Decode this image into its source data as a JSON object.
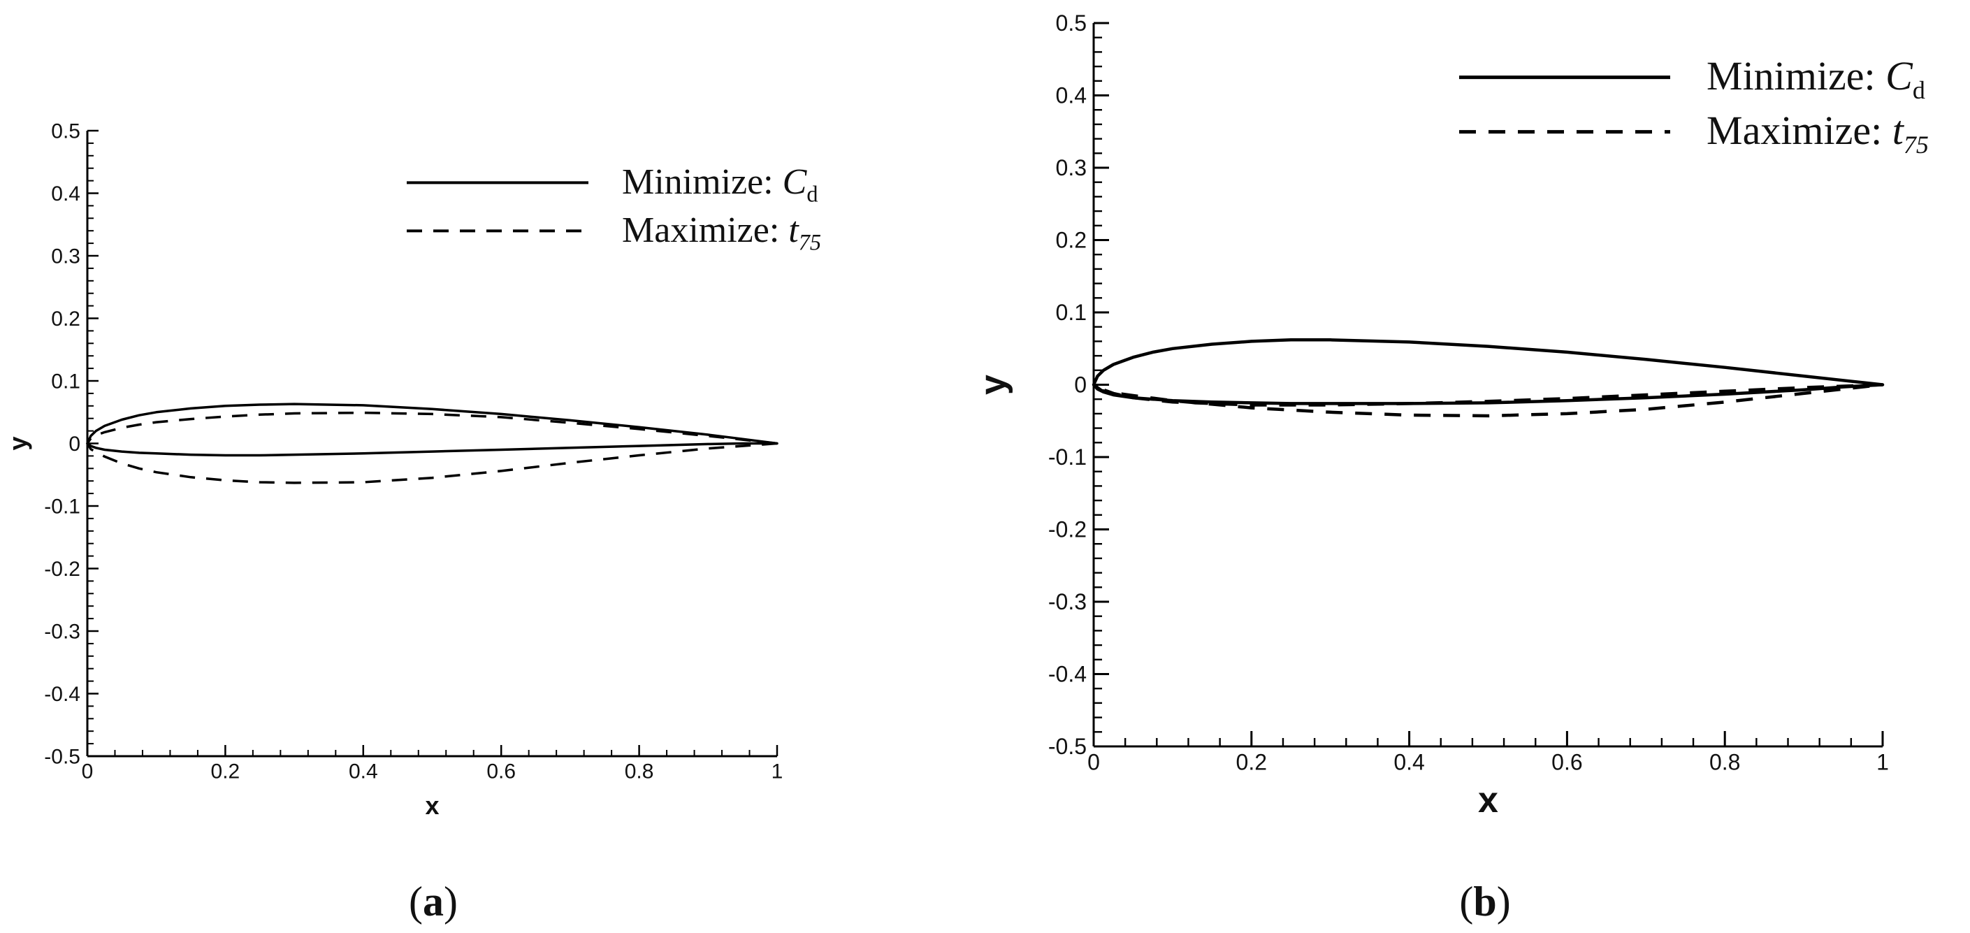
{
  "chart_data": [
    {
      "type": "line",
      "caption": "(a)",
      "caption_paren_open": "(",
      "caption_letter": "a",
      "caption_paren_close": ")",
      "xlabel": "x",
      "ylabel": "y",
      "xlim": [
        0,
        1
      ],
      "ylim": [
        -0.5,
        0.5
      ],
      "xticks": [
        0,
        0.2,
        0.4,
        0.6,
        0.8,
        1
      ],
      "xtick_labels": [
        "0",
        "0.2",
        "0.4",
        "0.6",
        "0.8",
        "1"
      ],
      "yticks": [
        -0.5,
        -0.4,
        -0.3,
        -0.2,
        -0.1,
        0,
        0.1,
        0.2,
        0.3,
        0.4,
        0.5
      ],
      "ytick_labels": [
        "-0.5",
        "-0.4",
        "-0.3",
        "-0.2",
        "-0.1",
        "0",
        "0.1",
        "0.2",
        "0.3",
        "0.4",
        "0.5"
      ],
      "grid": false,
      "legend_position": "top-right",
      "series": [
        {
          "legend_prefix": "Minimize: ",
          "legend_symbol": "C",
          "legend_sub": "d",
          "style": "solid",
          "color": "#000000",
          "x": [
            1.0,
            0.95,
            0.9,
            0.8,
            0.7,
            0.6,
            0.5,
            0.4,
            0.3,
            0.25,
            0.2,
            0.15,
            0.1,
            0.075,
            0.05,
            0.025,
            0.0125,
            0.005,
            0.0,
            0.005,
            0.0125,
            0.025,
            0.05,
            0.075,
            0.1,
            0.15,
            0.2,
            0.25,
            0.3,
            0.4,
            0.5,
            0.6,
            0.7,
            0.8,
            0.9,
            0.95,
            1.0
          ],
          "y": [
            0.0,
            0.007,
            0.014,
            0.026,
            0.037,
            0.047,
            0.055,
            0.061,
            0.063,
            0.062,
            0.06,
            0.056,
            0.05,
            0.045,
            0.038,
            0.028,
            0.02,
            0.012,
            0.0,
            -0.004,
            -0.007,
            -0.01,
            -0.013,
            -0.015,
            -0.016,
            -0.018,
            -0.019,
            -0.019,
            -0.018,
            -0.016,
            -0.013,
            -0.01,
            -0.007,
            -0.004,
            -0.001,
            0.0,
            0.0
          ]
        },
        {
          "legend_prefix": "Maximize: ",
          "legend_symbol": "t",
          "legend_sub": "75",
          "style": "dashed",
          "color": "#000000",
          "x": [
            1.0,
            0.95,
            0.9,
            0.8,
            0.7,
            0.6,
            0.5,
            0.4,
            0.3,
            0.25,
            0.2,
            0.15,
            0.1,
            0.075,
            0.05,
            0.025,
            0.0125,
            0.005,
            0.0,
            0.005,
            0.0125,
            0.025,
            0.05,
            0.075,
            0.1,
            0.15,
            0.2,
            0.25,
            0.3,
            0.4,
            0.5,
            0.6,
            0.7,
            0.8,
            0.9,
            0.95,
            1.0
          ],
          "y": [
            0.0,
            0.006,
            0.012,
            0.023,
            0.033,
            0.042,
            0.047,
            0.049,
            0.048,
            0.046,
            0.043,
            0.039,
            0.034,
            0.03,
            0.025,
            0.018,
            0.013,
            0.008,
            0.0,
            -0.009,
            -0.014,
            -0.021,
            -0.032,
            -0.04,
            -0.046,
            -0.054,
            -0.059,
            -0.062,
            -0.063,
            -0.062,
            -0.055,
            -0.044,
            -0.031,
            -0.019,
            -0.008,
            -0.004,
            0.0
          ]
        }
      ]
    },
    {
      "type": "line",
      "caption": "(b)",
      "caption_paren_open": "(",
      "caption_letter": "b",
      "caption_paren_close": ")",
      "xlabel": "x",
      "ylabel": "y",
      "xlim": [
        0,
        1
      ],
      "ylim": [
        -0.5,
        0.5
      ],
      "xticks": [
        0,
        0.2,
        0.4,
        0.6,
        0.8,
        1
      ],
      "xtick_labels": [
        "0",
        "0.2",
        "0.4",
        "0.6",
        "0.8",
        "1"
      ],
      "yticks": [
        -0.5,
        -0.4,
        -0.3,
        -0.2,
        -0.1,
        0,
        0.1,
        0.2,
        0.3,
        0.4,
        0.5
      ],
      "ytick_labels": [
        "-0.5",
        "-0.4",
        "-0.3",
        "-0.2",
        "-0.1",
        "0",
        "0.1",
        "0.2",
        "0.3",
        "0.4",
        "0.5"
      ],
      "grid": false,
      "legend_position": "top-right",
      "series": [
        {
          "legend_prefix": "Minimize: ",
          "legend_symbol": "C",
          "legend_sub": "d",
          "style": "solid",
          "color": "#000000",
          "x": [
            1.0,
            0.95,
            0.9,
            0.8,
            0.7,
            0.6,
            0.5,
            0.4,
            0.3,
            0.25,
            0.2,
            0.15,
            0.1,
            0.075,
            0.05,
            0.025,
            0.0125,
            0.005,
            0.0,
            0.005,
            0.0125,
            0.025,
            0.05,
            0.075,
            0.1,
            0.15,
            0.2,
            0.25,
            0.3,
            0.4,
            0.5,
            0.6,
            0.7,
            0.8,
            0.9,
            0.95,
            1.0
          ],
          "y": [
            0.0,
            0.006,
            0.012,
            0.024,
            0.035,
            0.045,
            0.053,
            0.059,
            0.062,
            0.062,
            0.06,
            0.056,
            0.05,
            0.045,
            0.038,
            0.028,
            0.02,
            0.012,
            0.0,
            -0.006,
            -0.01,
            -0.014,
            -0.018,
            -0.02,
            -0.022,
            -0.024,
            -0.025,
            -0.026,
            -0.026,
            -0.026,
            -0.025,
            -0.022,
            -0.018,
            -0.013,
            -0.007,
            -0.003,
            0.0
          ]
        },
        {
          "legend_prefix": "Maximize: ",
          "legend_symbol": "t",
          "legend_sub": "75",
          "style": "dashed",
          "color": "#000000",
          "x": [
            1.0,
            0.9,
            0.8,
            0.7,
            0.6,
            0.5,
            0.4,
            0.3,
            0.2,
            0.1,
            0.05,
            0.025,
            0.01,
            0.0,
            0.01,
            0.025,
            0.05,
            0.1,
            0.15,
            0.2,
            0.3,
            0.4,
            0.5,
            0.6,
            0.7,
            0.8,
            0.9,
            0.95,
            1.0
          ],
          "y": [
            0.0,
            -0.004,
            -0.009,
            -0.014,
            -0.019,
            -0.023,
            -0.026,
            -0.028,
            -0.028,
            -0.024,
            -0.018,
            -0.012,
            -0.006,
            0.0,
            -0.008,
            -0.011,
            -0.015,
            -0.022,
            -0.027,
            -0.032,
            -0.038,
            -0.042,
            -0.043,
            -0.04,
            -0.034,
            -0.024,
            -0.012,
            -0.006,
            0.0
          ]
        }
      ]
    }
  ]
}
